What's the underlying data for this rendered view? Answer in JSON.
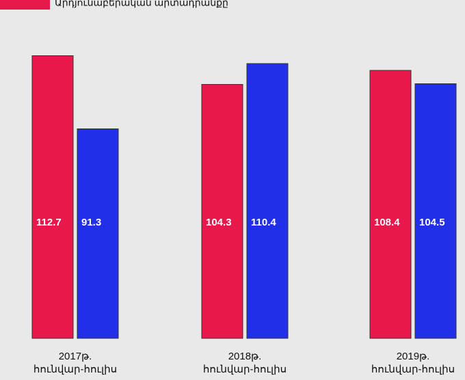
{
  "chart_data": {
    "type": "bar",
    "categories": [
      "2017թ.\nհունվար-հուլիս",
      "2018թ.\nհունվար-հուլիս",
      "2019թ.\nհունվար-հուլիս"
    ],
    "series": [
      {
        "name": "Արդյունաբերական արտադրանքը",
        "color": "#e8174c",
        "values": [
          112.7,
          104.3,
          108.4
        ]
      },
      {
        "color": "#2130e8",
        "values": [
          91.3,
          110.4,
          104.5
        ]
      }
    ],
    "ylim": [
      30,
      120
    ]
  }
}
